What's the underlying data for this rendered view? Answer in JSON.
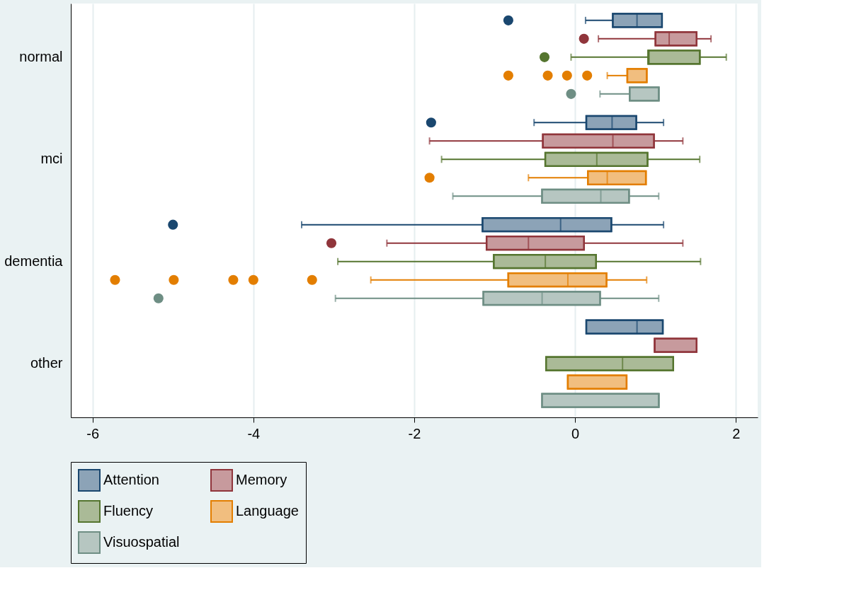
{
  "chart_data": {
    "type": "box",
    "orientation": "horizontal",
    "categories": [
      "normal",
      "mci",
      "dementia",
      "other"
    ],
    "xlim": [
      -6.27,
      2.27
    ],
    "xticks": [
      -6,
      -4,
      -2,
      0,
      2
    ],
    "grid": "x",
    "legend": "bottom",
    "series": [
      {
        "name": "Attention",
        "color": "#1a476f",
        "boxes": [
          {
            "low": 0.13,
            "q1": 0.47,
            "median": 0.77,
            "q3": 1.08,
            "high": 1.08,
            "outliers": [
              -0.83
            ]
          },
          {
            "low": -0.51,
            "q1": 0.14,
            "median": 0.46,
            "q3": 0.76,
            "high": 1.1,
            "outliers": [
              -1.79
            ]
          },
          {
            "low": -3.4,
            "q1": -1.15,
            "median": -0.18,
            "q3": 0.45,
            "high": 1.1,
            "outliers": [
              -5.0
            ]
          },
          {
            "low": 0.14,
            "q1": 0.14,
            "median": 0.77,
            "q3": 1.09,
            "high": 1.09
          }
        ]
      },
      {
        "name": "Memory",
        "color": "#90353b",
        "boxes": [
          {
            "low": 0.29,
            "q1": 1.0,
            "median": 1.17,
            "q3": 1.51,
            "high": 1.69,
            "outliers": [
              0.11
            ]
          },
          {
            "low": -1.81,
            "q1": -0.4,
            "median": 0.47,
            "q3": 0.98,
            "high": 1.34
          },
          {
            "low": -2.34,
            "q1": -1.1,
            "median": -0.58,
            "q3": 0.11,
            "high": 1.34,
            "outliers": [
              -3.03
            ]
          },
          {
            "low": 0.99,
            "q1": 0.99,
            "median": 0.99,
            "q3": 1.51,
            "high": 1.51
          }
        ]
      },
      {
        "name": "Fluency",
        "color": "#55752f",
        "boxes": [
          {
            "low": -0.05,
            "q1": 0.91,
            "median": 0.92,
            "q3": 1.55,
            "high": 1.88,
            "outliers": [
              -0.38
            ]
          },
          {
            "low": -1.66,
            "q1": -0.37,
            "median": 0.27,
            "q3": 0.9,
            "high": 1.55
          },
          {
            "low": -2.95,
            "q1": -1.01,
            "median": -0.37,
            "q3": 0.26,
            "high": 1.56
          },
          {
            "low": -0.36,
            "q1": -0.36,
            "median": 0.59,
            "q3": 1.22,
            "high": 1.22
          }
        ]
      },
      {
        "name": "Language",
        "color": "#e37e00",
        "boxes": [
          {
            "low": 0.4,
            "q1": 0.65,
            "median": 0.89,
            "q3": 0.89,
            "high": 0.89,
            "outliers": [
              -0.83,
              -0.34,
              -0.1,
              0.15
            ]
          },
          {
            "low": -0.58,
            "q1": 0.16,
            "median": 0.4,
            "q3": 0.88,
            "high": 0.88,
            "outliers": [
              -1.81
            ]
          },
          {
            "low": -2.54,
            "q1": -0.83,
            "median": -0.09,
            "q3": 0.39,
            "high": 0.89,
            "outliers": [
              -5.72,
              -4.99,
              -4.25,
              -4.0,
              -3.27
            ]
          },
          {
            "low": -0.09,
            "q1": -0.09,
            "median": 0.64,
            "q3": 0.64,
            "high": 0.64
          }
        ]
      },
      {
        "name": "Visuospatial",
        "color": "#6e8e84",
        "boxes": [
          {
            "low": 0.31,
            "q1": 0.68,
            "median": 1.04,
            "q3": 1.04,
            "high": 1.04,
            "outliers": [
              -0.05
            ]
          },
          {
            "low": -1.52,
            "q1": -0.41,
            "median": 0.32,
            "q3": 0.67,
            "high": 1.04
          },
          {
            "low": -2.98,
            "q1": -1.14,
            "median": -0.41,
            "q3": 0.31,
            "high": 1.04,
            "outliers": [
              -5.18
            ]
          },
          {
            "low": -0.41,
            "q1": -0.41,
            "median": 1.04,
            "q3": 1.04,
            "high": 1.04
          }
        ]
      }
    ]
  }
}
